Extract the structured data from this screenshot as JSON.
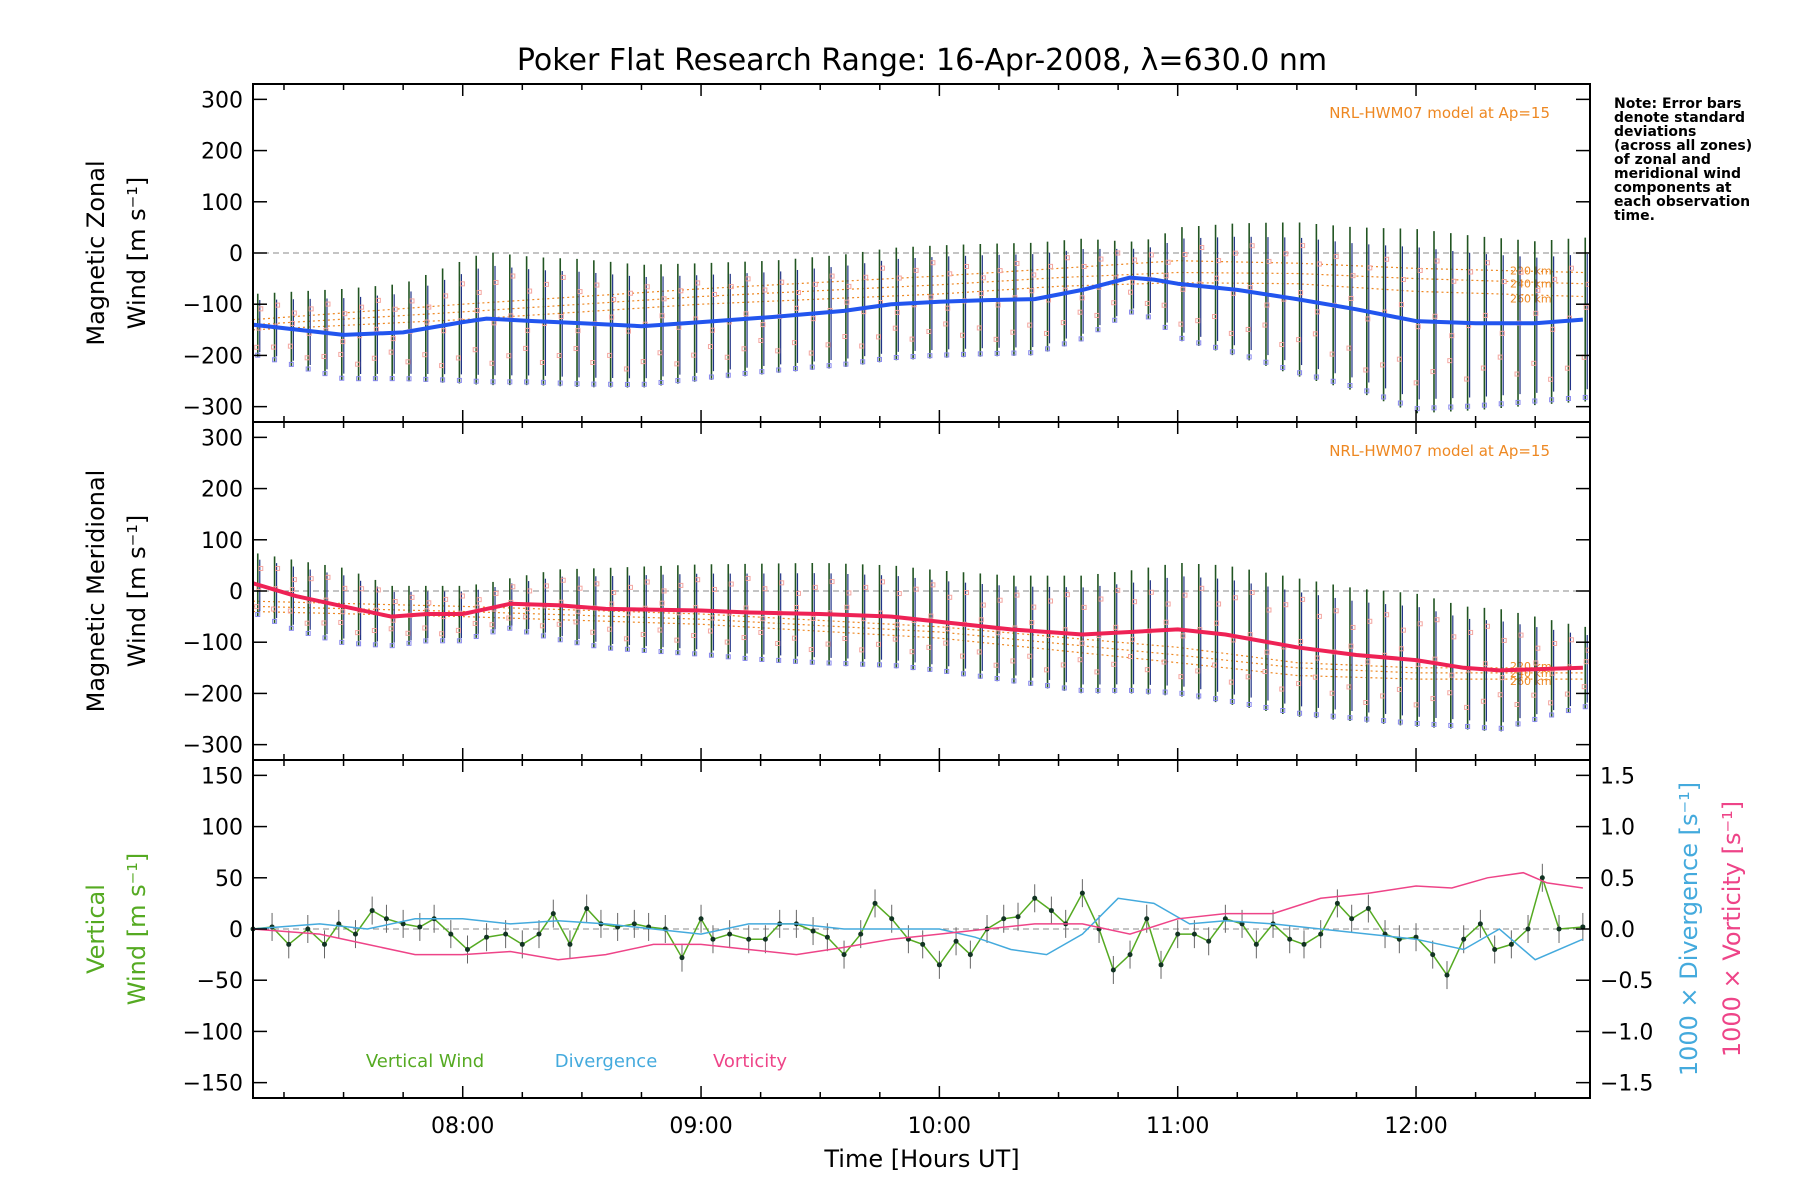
{
  "title": "Poker Flat Research Range: 16-Apr-2008, λ=630.0 nm",
  "note": [
    "Note: Error bars",
    "denote standard",
    "deviations",
    "(across all zones)",
    "of zonal and",
    "meridional wind",
    "components at",
    "each observation",
    "time."
  ],
  "colors": {
    "zonal_line": "#2255ee",
    "meridional_line": "#ee2255",
    "vertical": "#55aa22",
    "divergence": "#44aadd",
    "vorticity": "#ee4488",
    "model": "#ee8822",
    "errorbar_green": "#225522",
    "errorbar_blue": "#223388",
    "scatter_pink": "#f4a6a0",
    "scatter_blue": "#8888ee"
  },
  "chart_data": [
    {
      "type": "line",
      "panel": "zonal",
      "ylabel_line1": "Magnetic Zonal",
      "ylabel_line2": "Wind [m s⁻¹]",
      "ylim": [
        -330,
        330
      ],
      "yticks": [
        "300",
        "200",
        "100",
        "0",
        "−100",
        "−200",
        "−300"
      ],
      "ytick_values": [
        300,
        200,
        100,
        0,
        -100,
        -200,
        -300
      ],
      "model_label": "NRL-HWM07 model at Ap=15",
      "model_altitudes": [
        "220 km",
        "240 km",
        "260 km"
      ],
      "model_series": [
        {
          "name": "220 km",
          "x": [
            7.12,
            8.0,
            9.0,
            10.0,
            10.5,
            11.0,
            11.5,
            12.0,
            12.7
          ],
          "values": [
            -130,
            -100,
            -70,
            -45,
            -30,
            -15,
            -20,
            -30,
            -38
          ]
        },
        {
          "name": "240 km",
          "x": [
            7.12,
            8.0,
            9.0,
            10.0,
            10.5,
            11.0,
            11.5,
            12.0,
            12.7
          ],
          "values": [
            -140,
            -115,
            -85,
            -62,
            -48,
            -38,
            -40,
            -50,
            -60
          ]
        },
        {
          "name": "260 km",
          "x": [
            7.12,
            8.0,
            9.0,
            10.0,
            10.5,
            11.0,
            11.5,
            12.0,
            12.7
          ],
          "values": [
            -150,
            -130,
            -100,
            -80,
            -65,
            -58,
            -60,
            -75,
            -85
          ]
        }
      ],
      "x": [
        7.12,
        7.5,
        7.75,
        8.0,
        8.1,
        8.3,
        8.5,
        8.75,
        9.0,
        9.3,
        9.6,
        9.8,
        10.0,
        10.2,
        10.4,
        10.6,
        10.8,
        10.9,
        11.0,
        11.25,
        11.5,
        11.75,
        12.0,
        12.25,
        12.5,
        12.7
      ],
      "values": [
        -140,
        -160,
        -155,
        -135,
        -128,
        -133,
        -137,
        -143,
        -135,
        -125,
        -113,
        -100,
        -95,
        -92,
        -90,
        -72,
        -48,
        -52,
        -60,
        -72,
        -90,
        -110,
        -133,
        -137,
        -137,
        -130
      ],
      "err": [
        60,
        90,
        95,
        120,
        130,
        125,
        125,
        120,
        115,
        110,
        110,
        110,
        110,
        110,
        110,
        100,
        70,
        80,
        110,
        130,
        150,
        160,
        180,
        170,
        160,
        160
      ]
    },
    {
      "type": "line",
      "panel": "meridional",
      "ylabel_line1": "Magnetic Meridional",
      "ylabel_line2": "Wind [m s⁻¹]",
      "ylim": [
        -330,
        330
      ],
      "yticks": [
        "300",
        "200",
        "100",
        "0",
        "−100",
        "−200",
        "−300"
      ],
      "ytick_values": [
        300,
        200,
        100,
        0,
        -100,
        -200,
        -300
      ],
      "model_label": "NRL-HWM07 model at Ap=15",
      "model_altitudes": [
        "220 km",
        "240 km",
        "260 km"
      ],
      "model_series": [
        {
          "name": "220 km",
          "x": [
            7.12,
            8.0,
            9.0,
            10.0,
            11.0,
            11.5,
            12.0,
            12.7
          ],
          "values": [
            -20,
            -30,
            -45,
            -70,
            -110,
            -140,
            -150,
            -150
          ]
        },
        {
          "name": "240 km",
          "x": [
            7.12,
            8.0,
            9.0,
            10.0,
            11.0,
            11.5,
            12.0,
            12.7
          ],
          "values": [
            -30,
            -40,
            -55,
            -80,
            -125,
            -150,
            -160,
            -160
          ]
        },
        {
          "name": "260 km",
          "x": [
            7.12,
            8.0,
            9.0,
            10.0,
            11.0,
            11.5,
            12.0,
            12.7
          ],
          "values": [
            -40,
            -50,
            -65,
            -92,
            -140,
            -165,
            -172,
            -172
          ]
        }
      ],
      "x": [
        7.12,
        7.3,
        7.5,
        7.7,
        7.85,
        8.0,
        8.1,
        8.2,
        8.4,
        8.6,
        9.0,
        9.2,
        9.5,
        9.8,
        10.0,
        10.3,
        10.6,
        10.8,
        11.0,
        11.2,
        11.5,
        11.75,
        12.0,
        12.2,
        12.35,
        12.7
      ],
      "values": [
        15,
        -10,
        -30,
        -50,
        -45,
        -45,
        -35,
        -25,
        -28,
        -35,
        -38,
        -42,
        -45,
        -50,
        -60,
        -75,
        -85,
        -80,
        -75,
        -85,
        -110,
        -125,
        -135,
        -150,
        -155,
        -150
      ],
      "err": [
        60,
        70,
        75,
        60,
        55,
        55,
        50,
        50,
        70,
        80,
        90,
        95,
        100,
        100,
        100,
        105,
        115,
        120,
        130,
        135,
        135,
        130,
        130,
        120,
        120,
        80
      ]
    },
    {
      "type": "line",
      "panel": "vertical",
      "ylabel_line1": "Vertical",
      "ylabel_line2": "Wind [m s⁻¹]",
      "ylim": [
        -165,
        165
      ],
      "yticks": [
        "150",
        "100",
        "50",
        "0",
        "−50",
        "−100",
        "−150"
      ],
      "ytick_values": [
        150,
        100,
        50,
        0,
        -50,
        -100,
        -150
      ],
      "y2label_div": "1000 × Divergence [s⁻¹]",
      "y2label_vort": "1000 × Vorticity [s⁻¹]",
      "y2lim": [
        -1.65,
        1.65
      ],
      "y2ticks": [
        "1.5",
        "1.0",
        "0.5",
        "0.0",
        "−0.5",
        "−1.0",
        "−1.5"
      ],
      "y2tick_values": [
        1.5,
        1.0,
        0.5,
        0.0,
        -0.5,
        -1.0,
        -1.5
      ],
      "legend": [
        "Vertical Wind",
        "Divergence",
        "Vorticity"
      ],
      "series": [
        {
          "name": "Vertical Wind",
          "x": [
            7.12,
            7.2,
            7.27,
            7.35,
            7.42,
            7.48,
            7.55,
            7.62,
            7.68,
            7.75,
            7.82,
            7.88,
            7.95,
            8.02,
            8.1,
            8.18,
            8.25,
            8.32,
            8.38,
            8.45,
            8.52,
            8.58,
            8.65,
            8.72,
            8.78,
            8.85,
            8.92,
            9.0,
            9.05,
            9.12,
            9.2,
            9.27,
            9.33,
            9.4,
            9.47,
            9.53,
            9.6,
            9.67,
            9.73,
            9.8,
            9.87,
            9.93,
            10.0,
            10.07,
            10.13,
            10.2,
            10.27,
            10.33,
            10.4,
            10.47,
            10.53,
            10.6,
            10.67,
            10.73,
            10.8,
            10.87,
            10.93,
            11.0,
            11.07,
            11.13,
            11.2,
            11.27,
            11.33,
            11.4,
            11.47,
            11.53,
            11.6,
            11.67,
            11.73,
            11.8,
            11.87,
            11.93,
            12.0,
            12.07,
            12.13,
            12.2,
            12.27,
            12.33,
            12.4,
            12.47,
            12.53,
            12.6,
            12.7
          ],
          "values": [
            0,
            2,
            -15,
            0,
            -15,
            5,
            -5,
            18,
            10,
            5,
            2,
            10,
            -5,
            -20,
            -8,
            -5,
            -15,
            -5,
            15,
            -15,
            20,
            5,
            2,
            5,
            2,
            0,
            -28,
            10,
            -10,
            -5,
            -10,
            -10,
            5,
            5,
            -2,
            -8,
            -25,
            -5,
            25,
            10,
            -10,
            -15,
            -35,
            -12,
            -25,
            0,
            10,
            12,
            30,
            18,
            5,
            35,
            0,
            -40,
            -25,
            10,
            -35,
            -5,
            -5,
            -12,
            10,
            5,
            -15,
            5,
            -10,
            -15,
            -5,
            25,
            10,
            20,
            -5,
            -10,
            -8,
            -25,
            -45,
            -10,
            5,
            -20,
            -15,
            0,
            50,
            0,
            2
          ],
          "color": "#55aa22"
        },
        {
          "name": "Divergence",
          "axis": "y2",
          "x": [
            7.12,
            7.4,
            7.6,
            7.8,
            8.0,
            8.2,
            8.4,
            8.6,
            8.8,
            9.0,
            9.2,
            9.4,
            9.6,
            9.8,
            10.0,
            10.15,
            10.3,
            10.45,
            10.6,
            10.75,
            10.9,
            11.05,
            11.2,
            11.4,
            11.6,
            11.8,
            12.0,
            12.2,
            12.35,
            12.5,
            12.7
          ],
          "values": [
            0.0,
            0.05,
            0.0,
            0.1,
            0.1,
            0.05,
            0.08,
            0.05,
            0.0,
            -0.05,
            0.05,
            0.05,
            0.0,
            0.0,
            0.0,
            -0.08,
            -0.2,
            -0.25,
            -0.05,
            0.3,
            0.25,
            0.05,
            0.08,
            0.05,
            0.0,
            -0.05,
            -0.1,
            -0.2,
            0.0,
            -0.3,
            -0.1
          ],
          "color": "#44aadd"
        },
        {
          "name": "Vorticity",
          "axis": "y2",
          "x": [
            7.12,
            7.4,
            7.6,
            7.8,
            8.0,
            8.2,
            8.4,
            8.6,
            8.8,
            9.0,
            9.2,
            9.4,
            9.6,
            9.8,
            10.0,
            10.2,
            10.4,
            10.6,
            10.8,
            11.0,
            11.2,
            11.4,
            11.6,
            11.8,
            12.0,
            12.15,
            12.3,
            12.45,
            12.55,
            12.7
          ],
          "values": [
            0.0,
            -0.05,
            -0.15,
            -0.25,
            -0.25,
            -0.22,
            -0.3,
            -0.25,
            -0.15,
            -0.15,
            -0.2,
            -0.25,
            -0.18,
            -0.1,
            -0.05,
            0.0,
            0.05,
            0.05,
            -0.05,
            0.1,
            0.15,
            0.15,
            0.3,
            0.35,
            0.42,
            0.4,
            0.5,
            0.55,
            0.45,
            0.4
          ],
          "color": "#ee4488"
        }
      ]
    }
  ],
  "xaxis": {
    "label": "Time [Hours UT]",
    "xlim": [
      7.12,
      12.73
    ],
    "ticks": [
      "08:00",
      "09:00",
      "10:00",
      "11:00",
      "12:00"
    ],
    "tick_values": [
      8,
      9,
      10,
      11,
      12
    ]
  }
}
